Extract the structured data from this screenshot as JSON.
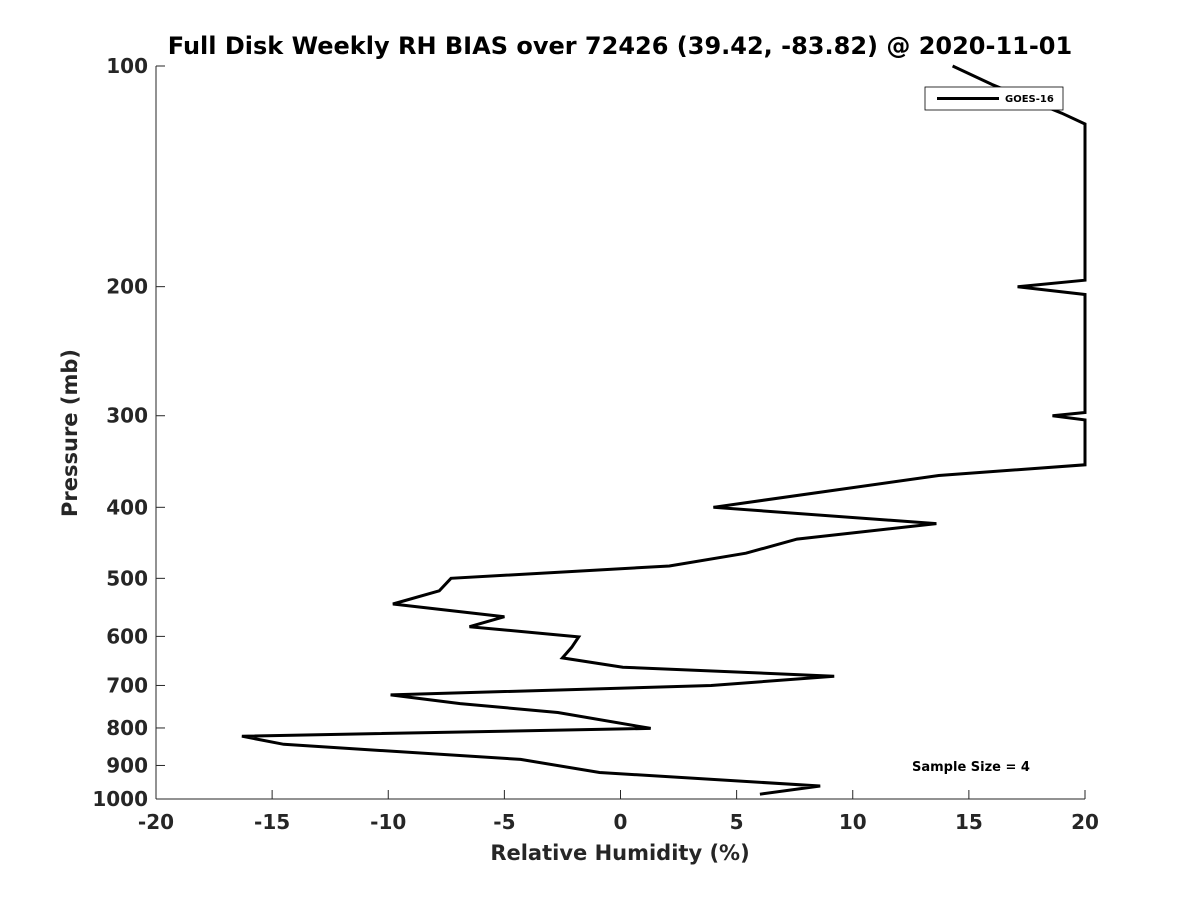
{
  "chart_data": {
    "type": "line",
    "title": "Full Disk Weekly RH BIAS over 72426 (39.42, -83.82) @ 2020-11-01",
    "xlabel": "Relative Humidity (%)",
    "ylabel": "Pressure (mb)",
    "xlim": [
      -20,
      20
    ],
    "ylim": [
      1000,
      100
    ],
    "yscale": "log",
    "grid": false,
    "legend_position": "top-right",
    "xticks": [
      "-20",
      "-15",
      "-10",
      "-5",
      "0",
      "5",
      "10",
      "15",
      "20"
    ],
    "xtick_values": [
      -20,
      -15,
      -10,
      -5,
      0,
      5,
      10,
      15,
      20
    ],
    "yticks": [
      "100",
      "200",
      "300",
      "400",
      "500",
      "600",
      "700",
      "800",
      "900",
      "1000"
    ],
    "ytick_values": [
      100,
      200,
      300,
      400,
      500,
      600,
      700,
      800,
      900,
      1000
    ],
    "series": [
      {
        "name": "GOES-16",
        "color": "#000000",
        "points": [
          {
            "x": 14.3,
            "y": 100
          },
          {
            "x": 16.0,
            "y": 106
          },
          {
            "x": 19.0,
            "y": 116
          },
          {
            "x": 20.0,
            "y": 120
          },
          {
            "x": 20.0,
            "y": 196
          },
          {
            "x": 17.1,
            "y": 200
          },
          {
            "x": 20.0,
            "y": 205
          },
          {
            "x": 20.0,
            "y": 297
          },
          {
            "x": 18.6,
            "y": 300
          },
          {
            "x": 20.0,
            "y": 304
          },
          {
            "x": 20.0,
            "y": 350
          },
          {
            "x": 13.7,
            "y": 362
          },
          {
            "x": 4.0,
            "y": 400
          },
          {
            "x": 13.6,
            "y": 421
          },
          {
            "x": 7.6,
            "y": 442
          },
          {
            "x": 5.4,
            "y": 462
          },
          {
            "x": 2.1,
            "y": 481
          },
          {
            "x": -7.3,
            "y": 500
          },
          {
            "x": -7.8,
            "y": 520
          },
          {
            "x": -9.8,
            "y": 542
          },
          {
            "x": -5.0,
            "y": 564
          },
          {
            "x": -6.5,
            "y": 582
          },
          {
            "x": -1.8,
            "y": 601
          },
          {
            "x": -2.1,
            "y": 621
          },
          {
            "x": -2.5,
            "y": 642
          },
          {
            "x": 0.1,
            "y": 661
          },
          {
            "x": 9.2,
            "y": 680
          },
          {
            "x": 3.9,
            "y": 700
          },
          {
            "x": -9.9,
            "y": 721
          },
          {
            "x": -6.9,
            "y": 741
          },
          {
            "x": -2.7,
            "y": 762
          },
          {
            "x": 1.3,
            "y": 801
          },
          {
            "x": -16.3,
            "y": 821
          },
          {
            "x": -14.5,
            "y": 842
          },
          {
            "x": -4.3,
            "y": 883
          },
          {
            "x": -0.9,
            "y": 920
          },
          {
            "x": 8.6,
            "y": 960
          },
          {
            "x": 6.0,
            "y": 985
          }
        ]
      }
    ],
    "annotations": [
      "Sample Size = 4"
    ]
  }
}
